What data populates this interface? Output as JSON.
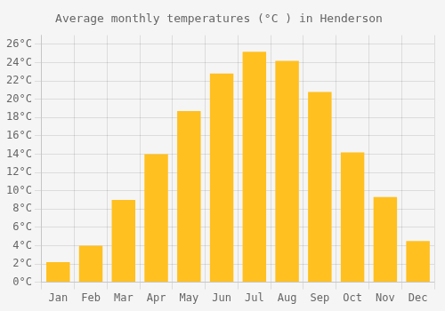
{
  "chart_data": {
    "type": "bar",
    "title": "Average monthly temperatures (°C ) in Henderson",
    "categories": [
      "Jan",
      "Feb",
      "Mar",
      "Apr",
      "May",
      "Jun",
      "Jul",
      "Aug",
      "Sep",
      "Oct",
      "Nov",
      "Dec"
    ],
    "values": [
      2.2,
      4.0,
      9.0,
      14.0,
      18.7,
      22.8,
      25.2,
      24.2,
      20.8,
      14.2,
      9.3,
      4.5
    ],
    "color": "#FFC020",
    "ylim": [
      0,
      27
    ],
    "yticks": [
      {
        "value": 0,
        "label": "0°C"
      },
      {
        "value": 2,
        "label": "2°C"
      },
      {
        "value": 4,
        "label": "4°C"
      },
      {
        "value": 6,
        "label": "6°C"
      },
      {
        "value": 8,
        "label": "8°C"
      },
      {
        "value": 10,
        "label": "10°C"
      },
      {
        "value": 12,
        "label": "12°C"
      },
      {
        "value": 14,
        "label": "14°C"
      },
      {
        "value": 16,
        "label": "16°C"
      },
      {
        "value": 18,
        "label": "18°C"
      },
      {
        "value": 20,
        "label": "20°C"
      },
      {
        "value": 22,
        "label": "22°C"
      },
      {
        "value": 24,
        "label": "24°C"
      },
      {
        "value": 26,
        "label": "26°C"
      }
    ],
    "grid": true
  }
}
